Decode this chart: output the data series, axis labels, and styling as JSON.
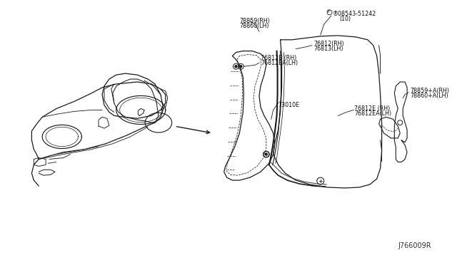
{
  "bg_color": "#ffffff",
  "line_color": "#1a1a1a",
  "diagram_code": "J766009R",
  "labels": {
    "top_rh": "78859(RH)",
    "top_lh": "78860(LH)",
    "fastener": "®08543-51242",
    "fastener_qty": "(10)",
    "center_left": "73010E",
    "mid_right_rh": "76812E (RH)",
    "mid_right_lh": "76812EA(LH)",
    "bot_left_rh": "76812E (RH)",
    "bot_left_lh": "76812EA(LH)",
    "bot_mid_rh": "76812(RH)",
    "bot_mid_lh": "76813(LH)",
    "right_rh": "78859+A(RH)",
    "right_lh": "78860+A(LH)"
  },
  "font_size_label": 5.8,
  "font_size_code": 7.0
}
